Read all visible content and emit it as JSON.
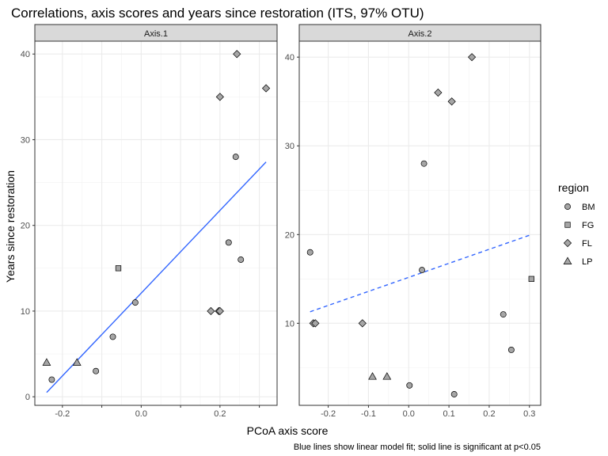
{
  "chart_data": {
    "type": "scatter",
    "title": "Correlations, axis scores and years since restoration (ITS, 97% OTU)",
    "xlabel": "PCoA axis score",
    "ylabel": "Years since restoration",
    "caption": "Blue lines show linear model fit; solid line is significant at p<0.05",
    "legend": {
      "title": "region",
      "placement": "right",
      "entries": [
        {
          "label": "BM",
          "shape": "circle"
        },
        {
          "label": "FG",
          "shape": "square"
        },
        {
          "label": "FL",
          "shape": "diamond"
        },
        {
          "label": "LP",
          "shape": "triangle"
        }
      ]
    },
    "marker_fill": "#a6a6a6",
    "fit_color": "#3366ff",
    "strip_fill": "#d9d9d9",
    "grid": true,
    "panels": [
      {
        "strip": "Axis.1",
        "xlim": [
          -0.27,
          0.345
        ],
        "ylim": [
          -1,
          41.5
        ],
        "xticks": [
          -0.2,
          -0.1,
          0.0,
          0.1,
          0.2,
          0.3
        ],
        "xtick_labels": [
          "-0.2",
          "",
          "0.0",
          "",
          "0.2",
          ""
        ],
        "yticks": [
          0,
          10,
          20,
          30,
          40
        ],
        "ytick_labels": [
          "0",
          "10",
          "20",
          "30",
          "40"
        ],
        "fit": {
          "x": [
            -0.24,
            0.317
          ],
          "y": [
            0.5,
            27.4
          ],
          "significant": true
        },
        "points": [
          {
            "region": "LP",
            "x": -0.24,
            "y": 4
          },
          {
            "region": "BM",
            "x": -0.227,
            "y": 2
          },
          {
            "region": "LP",
            "x": -0.163,
            "y": 4
          },
          {
            "region": "BM",
            "x": -0.115,
            "y": 3
          },
          {
            "region": "BM",
            "x": -0.072,
            "y": 7
          },
          {
            "region": "FG",
            "x": -0.058,
            "y": 15
          },
          {
            "region": "BM",
            "x": -0.015,
            "y": 11
          },
          {
            "region": "FL",
            "x": 0.177,
            "y": 10
          },
          {
            "region": "FL",
            "x": 0.197,
            "y": 10
          },
          {
            "region": "FL",
            "x": 0.2,
            "y": 10
          },
          {
            "region": "FL",
            "x": 0.2,
            "y": 35
          },
          {
            "region": "BM",
            "x": 0.222,
            "y": 18
          },
          {
            "region": "BM",
            "x": 0.24,
            "y": 28
          },
          {
            "region": "FL",
            "x": 0.243,
            "y": 40
          },
          {
            "region": "BM",
            "x": 0.253,
            "y": 16
          },
          {
            "region": "FL",
            "x": 0.317,
            "y": 36
          }
        ]
      },
      {
        "strip": "Axis.2",
        "xlim": [
          -0.272,
          0.328
        ],
        "ylim": [
          0.75,
          41.8
        ],
        "xticks": [
          -0.2,
          -0.1,
          0.0,
          0.1,
          0.2,
          0.3
        ],
        "xtick_labels": [
          "-0.2",
          "-0.1",
          "0.0",
          "0.1",
          "0.2",
          "0.3"
        ],
        "yticks": [
          10,
          20,
          30,
          40
        ],
        "ytick_labels": [
          "10",
          "20",
          "30",
          "40"
        ],
        "fit": {
          "x": [
            -0.245,
            0.305
          ],
          "y": [
            11.3,
            20
          ],
          "significant": false
        },
        "points": [
          {
            "region": "BM",
            "x": -0.245,
            "y": 18
          },
          {
            "region": "FL",
            "x": -0.237,
            "y": 10
          },
          {
            "region": "FL",
            "x": -0.232,
            "y": 10
          },
          {
            "region": "FL",
            "x": -0.115,
            "y": 10
          },
          {
            "region": "LP",
            "x": -0.09,
            "y": 4
          },
          {
            "region": "LP",
            "x": -0.054,
            "y": 4
          },
          {
            "region": "BM",
            "x": 0.002,
            "y": 3
          },
          {
            "region": "BM",
            "x": 0.033,
            "y": 16
          },
          {
            "region": "BM",
            "x": 0.038,
            "y": 28
          },
          {
            "region": "FL",
            "x": 0.073,
            "y": 36
          },
          {
            "region": "FL",
            "x": 0.107,
            "y": 35
          },
          {
            "region": "BM",
            "x": 0.113,
            "y": 2
          },
          {
            "region": "FL",
            "x": 0.157,
            "y": 40
          },
          {
            "region": "BM",
            "x": 0.235,
            "y": 11
          },
          {
            "region": "BM",
            "x": 0.255,
            "y": 7
          },
          {
            "region": "FG",
            "x": 0.305,
            "y": 15
          }
        ]
      }
    ]
  }
}
